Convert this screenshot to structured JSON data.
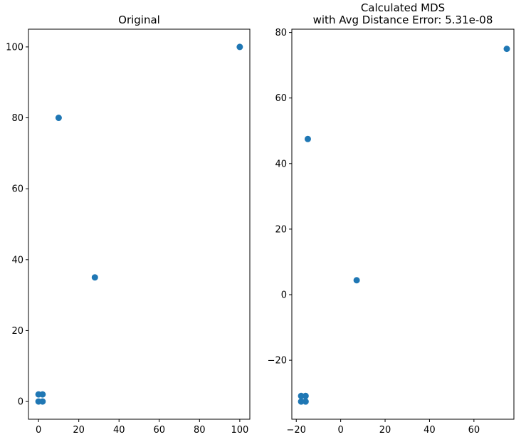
{
  "chart_data": [
    {
      "type": "scatter",
      "title": "Original",
      "xlabel": "",
      "ylabel": "",
      "xlim": [
        -5,
        105
      ],
      "ylim": [
        -5,
        105
      ],
      "xticks": [
        0,
        20,
        40,
        60,
        80,
        100
      ],
      "yticks": [
        0,
        20,
        40,
        60,
        80,
        100
      ],
      "grid": false,
      "marker_color": "#1f77b4",
      "points": [
        {
          "x": 0,
          "y": 0
        },
        {
          "x": 2,
          "y": 0
        },
        {
          "x": 0,
          "y": 2
        },
        {
          "x": 2,
          "y": 2
        },
        {
          "x": 10,
          "y": 80
        },
        {
          "x": 28,
          "y": 35
        },
        {
          "x": 100,
          "y": 100
        }
      ]
    },
    {
      "type": "scatter",
      "title": "Calculated MDS\nwith Avg Distance Error: 5.31e-08",
      "xlabel": "",
      "ylabel": "",
      "xlim": [
        -22,
        78
      ],
      "ylim": [
        -38,
        81
      ],
      "xticks": [
        -20,
        0,
        20,
        40,
        60
      ],
      "yticks": [
        -20,
        0,
        20,
        40,
        60,
        80
      ],
      "grid": false,
      "marker_color": "#1f77b4",
      "points": [
        {
          "x": -17.8,
          "y": -32.6
        },
        {
          "x": -15.8,
          "y": -32.6
        },
        {
          "x": -17.8,
          "y": -30.9
        },
        {
          "x": -15.8,
          "y": -30.9
        },
        {
          "x": -14.8,
          "y": 47.5
        },
        {
          "x": 7.2,
          "y": 4.4
        },
        {
          "x": 74.8,
          "y": 75.0
        }
      ]
    }
  ]
}
